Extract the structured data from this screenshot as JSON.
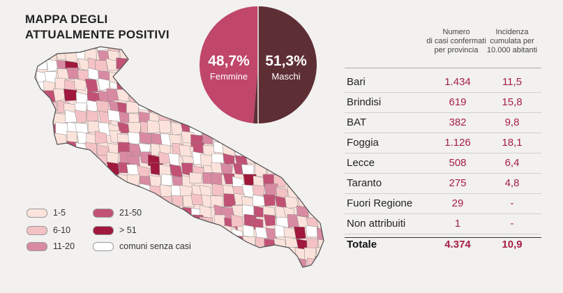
{
  "title": {
    "line1": "MAPPA DEGLI",
    "line2": "ATTUALMENTE POSITIVI"
  },
  "gender": {
    "female": {
      "pct": "48,7%",
      "label": "Femmine",
      "value": 48.7,
      "color": "#c0466a"
    },
    "male": {
      "pct": "51,3%",
      "label": "Maschi",
      "value": 51.3,
      "color": "#5e2e35"
    }
  },
  "legend": [
    {
      "label": "1-5",
      "color": "#fbe3dc"
    },
    {
      "label": "6-10",
      "color": "#f4c2c5"
    },
    {
      "label": "11-20",
      "color": "#d98aa3"
    },
    {
      "label": "21-50",
      "color": "#c25275"
    },
    {
      "label": "> 51",
      "color": "#a0183c"
    },
    {
      "label": "comuni senza casi",
      "color": "#ffffff"
    }
  ],
  "table": {
    "header_cases": [
      "Numero",
      "di casi confermati",
      "per provincia"
    ],
    "header_incidence": [
      "Incidenza",
      "cumulata per",
      "10.000 abitanti"
    ],
    "rows": [
      {
        "name": "Bari",
        "cases": "1.434",
        "incidence": "11,5"
      },
      {
        "name": "Brindisi",
        "cases": "619",
        "incidence": "15,8"
      },
      {
        "name": "BAT",
        "cases": "382",
        "incidence": "9,8"
      },
      {
        "name": "Foggia",
        "cases": "1.126",
        "incidence": "18,1"
      },
      {
        "name": "Lecce",
        "cases": "508",
        "incidence": "6,4"
      },
      {
        "name": "Taranto",
        "cases": "275",
        "incidence": "4,8"
      },
      {
        "name": "Fuori Regione",
        "cases": "29",
        "incidence": "-"
      },
      {
        "name": "Non attribuiti",
        "cases": "1",
        "incidence": "-"
      }
    ],
    "total": {
      "name": "Totale",
      "cases": "4.374",
      "incidence": "10,9"
    }
  }
}
